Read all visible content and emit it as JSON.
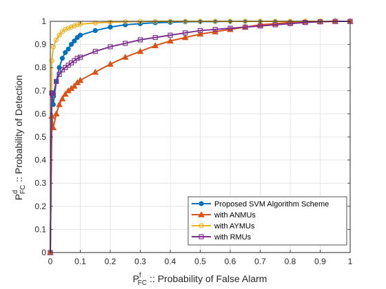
{
  "chart_data": {
    "type": "line",
    "xlabel": {
      "main": "P",
      "sup": "f",
      "sub": "FC",
      "rest": ":: Probability of False Alarm"
    },
    "ylabel": {
      "main": "P",
      "sup": "d",
      "sub": "FC",
      "rest": ":: Probability of Detection"
    },
    "xlim": [
      0,
      1
    ],
    "ylim": [
      0,
      1
    ],
    "xticks": [
      0,
      0.1,
      0.2,
      0.3,
      0.4,
      0.5,
      0.6,
      0.7,
      0.8,
      0.9,
      1
    ],
    "xtick_labels": [
      "0",
      "0.1",
      "0.2",
      "0.3",
      "0.4",
      "0.5",
      "0.6",
      "0.7",
      "0.8",
      "0.9",
      "1"
    ],
    "yticks": [
      0,
      0.1,
      0.2,
      0.3,
      0.4,
      0.5,
      0.6,
      0.7,
      0.8,
      0.9,
      1
    ],
    "ytick_labels": [
      "0",
      "0.1",
      "0.2",
      "0.3",
      "0.4",
      "0.5",
      "0.6",
      "0.7",
      "0.8",
      "0.9",
      "1"
    ],
    "grid": true,
    "legend_position": "bottom-right",
    "series": [
      {
        "name": "Proposed SVM Algorithm Scheme",
        "color": "#0072BD",
        "marker": "circle",
        "x": [
          0,
          0.005,
          0.01,
          0.02,
          0.03,
          0.04,
          0.05,
          0.06,
          0.07,
          0.08,
          0.09,
          0.1,
          0.15,
          0.2,
          0.25,
          0.3,
          0.35,
          0.4,
          0.45,
          0.5,
          0.55,
          0.6,
          0.65,
          0.7,
          0.75,
          0.8,
          0.85,
          0.9,
          0.95,
          1
        ],
        "y": [
          0,
          0.69,
          0.64,
          0.74,
          0.8,
          0.84,
          0.865,
          0.88,
          0.9,
          0.915,
          0.93,
          0.94,
          0.96,
          0.975,
          0.985,
          0.99,
          0.994,
          0.996,
          0.998,
          0.999,
          0.999,
          1,
          1,
          1,
          1,
          1,
          1,
          1,
          1,
          1
        ]
      },
      {
        "name": "with ANMUs",
        "color": "#D95319",
        "marker": "triangle",
        "x": [
          0,
          0.005,
          0.01,
          0.02,
          0.03,
          0.04,
          0.05,
          0.06,
          0.07,
          0.08,
          0.09,
          0.1,
          0.15,
          0.2,
          0.25,
          0.3,
          0.35,
          0.4,
          0.45,
          0.5,
          0.55,
          0.6,
          0.65,
          0.7,
          0.75,
          0.8,
          0.85,
          0.9,
          0.95,
          1
        ],
        "y": [
          0,
          0.59,
          0.54,
          0.6,
          0.64,
          0.665,
          0.685,
          0.7,
          0.71,
          0.72,
          0.735,
          0.745,
          0.78,
          0.815,
          0.845,
          0.87,
          0.895,
          0.915,
          0.93,
          0.945,
          0.955,
          0.965,
          0.975,
          0.985,
          0.99,
          0.995,
          0.998,
          0.999,
          1,
          1
        ]
      },
      {
        "name": " with AYMUs",
        "color": "#EDB120",
        "marker": "circle",
        "x": [
          0,
          0.005,
          0.01,
          0.02,
          0.03,
          0.04,
          0.05,
          0.06,
          0.07,
          0.08,
          0.09,
          0.1,
          0.15,
          0.2,
          0.25,
          0.3,
          0.35,
          0.4,
          0.45,
          0.5,
          0.55,
          0.6,
          0.65,
          0.7,
          0.75,
          0.8,
          0.85,
          0.9,
          0.95,
          1
        ],
        "y": [
          0,
          0.83,
          0.89,
          0.92,
          0.94,
          0.955,
          0.965,
          0.97,
          0.975,
          0.98,
          0.985,
          0.988,
          0.993,
          0.996,
          0.998,
          0.999,
          1,
          1,
          1,
          1,
          1,
          1,
          1,
          1,
          1,
          1,
          1,
          1,
          1,
          1
        ]
      },
      {
        "name": "with RMUs",
        "color": "#7E2F8E",
        "marker": "square",
        "x": [
          0,
          0.005,
          0.01,
          0.02,
          0.03,
          0.04,
          0.05,
          0.06,
          0.07,
          0.08,
          0.09,
          0.1,
          0.15,
          0.2,
          0.25,
          0.3,
          0.35,
          0.4,
          0.45,
          0.5,
          0.55,
          0.6,
          0.65,
          0.7,
          0.75,
          0.8,
          0.85,
          0.9,
          0.95,
          1
        ],
        "y": [
          0,
          0.69,
          0.68,
          0.74,
          0.77,
          0.79,
          0.8,
          0.81,
          0.82,
          0.83,
          0.84,
          0.845,
          0.87,
          0.89,
          0.905,
          0.92,
          0.93,
          0.94,
          0.95,
          0.96,
          0.965,
          0.97,
          0.975,
          0.98,
          0.985,
          0.99,
          0.995,
          0.998,
          1,
          1
        ]
      }
    ]
  }
}
